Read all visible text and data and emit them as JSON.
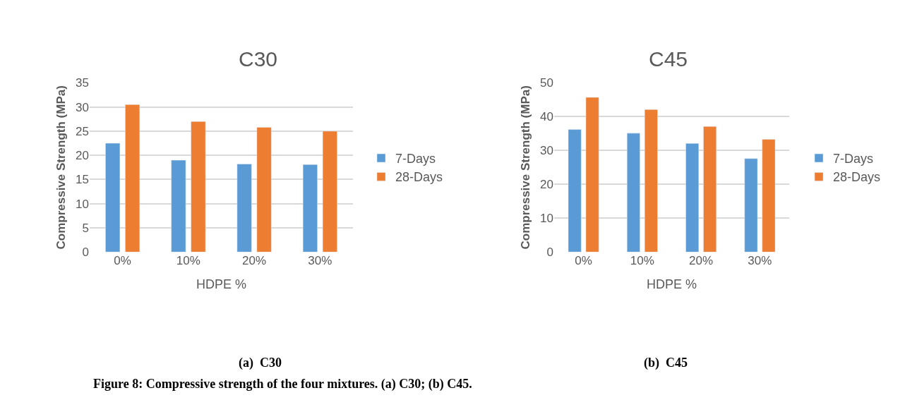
{
  "chart_data": [
    {
      "type": "bar",
      "title": "C30",
      "xlabel": "HDPE %",
      "ylabel": "Compressive Strength (MPa)",
      "categories": [
        "0%",
        "10%",
        "20%",
        "30%"
      ],
      "series": [
        {
          "name": "7-Days",
          "color": "#5b9bd5",
          "values": [
            22.5,
            19,
            18.2,
            18.1
          ]
        },
        {
          "name": "28-Days",
          "color": "#ed7d31",
          "values": [
            30.5,
            27,
            25.8,
            25
          ]
        }
      ],
      "ylim": [
        0,
        35
      ],
      "yticks": [
        0,
        5,
        10,
        15,
        20,
        25,
        30,
        35
      ],
      "grid": "y",
      "legend": "right",
      "annotations": [
        "(a)  C30",
        "Figure 8: Compressive strength of the four mixtures. (a) C30; (b) C45."
      ]
    },
    {
      "type": "bar",
      "title": "C45",
      "xlabel": "HDPE %",
      "ylabel": "Compressive Strength (MPa)",
      "categories": [
        "0%",
        "10%",
        "20%",
        "30%"
      ],
      "series": [
        {
          "name": "7-Days",
          "color": "#5b9bd5",
          "values": [
            36.2,
            35.1,
            32.1,
            27.6
          ]
        },
        {
          "name": "28-Days",
          "color": "#ed7d31",
          "values": [
            45.7,
            42.1,
            37.1,
            33.3
          ]
        }
      ],
      "ylim": [
        0,
        50
      ],
      "yticks": [
        0,
        10,
        20,
        30,
        40,
        50
      ],
      "grid": "y",
      "legend": "right",
      "annotations": [
        "(b)  C45"
      ]
    }
  ]
}
